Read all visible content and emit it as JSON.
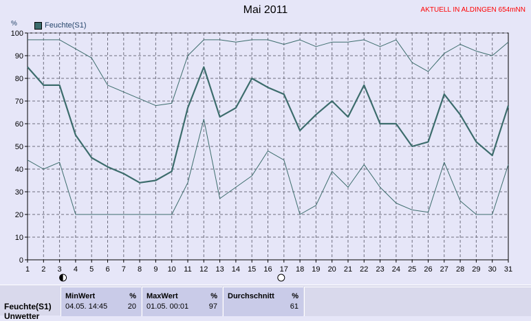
{
  "title": "Mai 2011",
  "status_text": "AKTUELL IN ALDINGEN 654mNN",
  "legend_label": "Feuchte(S1)",
  "y_unit": "%",
  "stats": {
    "row_label": "Feuchte(S1)",
    "row_label_2": "Unwetter",
    "min": {
      "header": "MinWert",
      "unit": "%",
      "datetime": "04.05.  14:45",
      "value": "20"
    },
    "max": {
      "header": "MaxWert",
      "unit": "%",
      "datetime": "01.05.  00:01",
      "value": "97"
    },
    "avg": {
      "header": "Durchschnitt",
      "unit": "%",
      "value": "61"
    }
  },
  "colors": {
    "background": "#e6e6f8",
    "line": "#3c6c6c",
    "grid": "#6e6e7e",
    "status": "#ff0000"
  },
  "chart_data": {
    "type": "line",
    "title": "Mai 2011",
    "xlabel": "",
    "ylabel": "%",
    "x": [
      1,
      2,
      3,
      4,
      5,
      6,
      7,
      8,
      9,
      10,
      11,
      12,
      13,
      14,
      15,
      16,
      17,
      18,
      19,
      20,
      21,
      22,
      23,
      24,
      25,
      26,
      27,
      28,
      29,
      30,
      31
    ],
    "ylim": [
      0,
      100
    ],
    "yticks": [
      0,
      10,
      20,
      30,
      40,
      50,
      60,
      70,
      80,
      90,
      100
    ],
    "grid": true,
    "legend_position": "top-left",
    "series": [
      {
        "name": "Feuchte(S1)",
        "role": "mean",
        "values": [
          85,
          77,
          77,
          55,
          45,
          41,
          38,
          34,
          35,
          39,
          67,
          85,
          63,
          67,
          80,
          76,
          73,
          57,
          64,
          70,
          63,
          77,
          60,
          60,
          50,
          52,
          73,
          64,
          52,
          46,
          68
        ]
      },
      {
        "role": "max",
        "values": [
          97,
          97,
          97,
          93,
          89,
          77,
          74,
          71,
          68,
          69,
          90,
          97,
          97,
          96,
          97,
          97,
          95,
          97,
          94,
          96,
          96,
          97,
          94,
          97,
          87,
          83,
          91,
          95,
          92,
          90,
          96
        ]
      },
      {
        "role": "min",
        "values": [
          44,
          40,
          43,
          20,
          20,
          20,
          20,
          20,
          20,
          20,
          34,
          62,
          27,
          32,
          37,
          48,
          44,
          20,
          24,
          39,
          32,
          42,
          32,
          25,
          22,
          21,
          43,
          26,
          20,
          20,
          42
        ]
      }
    ],
    "markers": [
      {
        "x": 3,
        "symbol": "moon-phase-dark"
      },
      {
        "x": 17,
        "symbol": "moon-phase-full"
      }
    ]
  }
}
